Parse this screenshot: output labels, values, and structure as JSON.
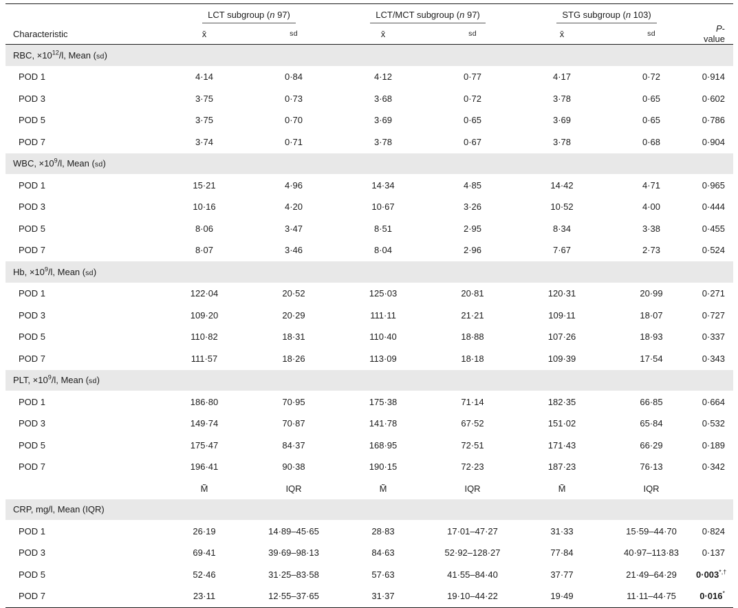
{
  "header": {
    "groups": [
      {
        "label": "LCT subgroup (",
        "n_label": "n",
        "n_value": " 97)"
      },
      {
        "label": "LCT/MCT subgroup (",
        "n_label": "n",
        "n_value": " 97)"
      },
      {
        "label": "STG subgroup (",
        "n_label": "n",
        "n_value": " 103)"
      }
    ],
    "characteristic": "Characteristic",
    "mean_symbol": "x̄",
    "sd_symbol": "sd",
    "p_value_italic": "P",
    "p_value_rest": "-value"
  },
  "sections": [
    {
      "label_pre": "RBC, ×10",
      "label_sup": "12",
      "label_post": "/l, Mean (",
      "label_sc": "sd",
      "label_end": ")",
      "rows": [
        {
          "label": "POD 1",
          "values": [
            "4·14",
            "0·84",
            "4·12",
            "0·77",
            "4·17",
            "0·72"
          ],
          "p": "0·914"
        },
        {
          "label": "POD 3",
          "values": [
            "3·75",
            "0·73",
            "3·68",
            "0·72",
            "3·78",
            "0·65"
          ],
          "p": "0·602"
        },
        {
          "label": "POD 5",
          "values": [
            "3·75",
            "0·70",
            "3·69",
            "0·65",
            "3·69",
            "0·65"
          ],
          "p": "0·786"
        },
        {
          "label": "POD 7",
          "values": [
            "3·74",
            "0·71",
            "3·78",
            "0·67",
            "3·78",
            "0·68"
          ],
          "p": "0·904"
        }
      ]
    },
    {
      "label_pre": "WBC, ×10",
      "label_sup": "9",
      "label_post": "/l, Mean (",
      "label_sc": "sd",
      "label_end": ")",
      "rows": [
        {
          "label": "POD 1",
          "values": [
            "15·21",
            "4·96",
            "14·34",
            "4·85",
            "14·42",
            "4·71"
          ],
          "p": "0·965"
        },
        {
          "label": "POD 3",
          "values": [
            "10·16",
            "4·20",
            "10·67",
            "3·26",
            "10·52",
            "4·00"
          ],
          "p": "0·444"
        },
        {
          "label": "POD 5",
          "values": [
            "8·06",
            "3·47",
            "8·51",
            "2·95",
            "8·34",
            "3·38"
          ],
          "p": "0·455"
        },
        {
          "label": "POD 7",
          "values": [
            "8·07",
            "3·46",
            "8·04",
            "2·96",
            "7·67",
            "2·73"
          ],
          "p": "0·524"
        }
      ]
    },
    {
      "label_pre": "Hb, ×10",
      "label_sup": "9",
      "label_post": "/l, Mean (",
      "label_sc": "sd",
      "label_end": ")",
      "rows": [
        {
          "label": "POD 1",
          "values": [
            "122·04",
            "20·52",
            "125·03",
            "20·81",
            "120·31",
            "20·99"
          ],
          "p": "0·271"
        },
        {
          "label": "POD 3",
          "values": [
            "109·20",
            "20·29",
            "111·11",
            "21·21",
            "109·11",
            "18·07"
          ],
          "p": "0·727"
        },
        {
          "label": "POD 5",
          "values": [
            "110·82",
            "18·31",
            "110·40",
            "18·88",
            "107·26",
            "18·93"
          ],
          "p": "0·337"
        },
        {
          "label": "POD 7",
          "values": [
            "111·57",
            "18·26",
            "113·09",
            "18·18",
            "109·39",
            "17·54"
          ],
          "p": "0·343"
        }
      ]
    },
    {
      "label_pre": "PLT, ×10",
      "label_sup": "9",
      "label_post": "/l, Mean (",
      "label_sc": "sd",
      "label_end": ")",
      "rows": [
        {
          "label": "POD 1",
          "values": [
            "186·80",
            "70·95",
            "175·38",
            "71·14",
            "182·35",
            "66·85"
          ],
          "p": "0·664"
        },
        {
          "label": "POD 3",
          "values": [
            "149·74",
            "70·87",
            "141·78",
            "67·52",
            "151·02",
            "65·84"
          ],
          "p": "0·532"
        },
        {
          "label": "POD 5",
          "values": [
            "175·47",
            "84·37",
            "168·95",
            "72·51",
            "171·43",
            "66·29"
          ],
          "p": "0·189"
        },
        {
          "label": "POD 7",
          "values": [
            "196·41",
            "90·38",
            "190·15",
            "72·23",
            "187·23",
            "76·13"
          ],
          "p": "0·342"
        }
      ]
    }
  ],
  "subheader": {
    "median_symbol": "M̃",
    "iqr": "IQR"
  },
  "crp": {
    "label": "CRP, mg/l, Mean (IQR)",
    "rows": [
      {
        "label": "POD 1",
        "values": [
          "26·19",
          "14·89–45·65",
          "28·83",
          "17·01–47·27",
          "31·33",
          "15·59–44·70"
        ],
        "p": "0·824",
        "p_sup": "",
        "bold": false
      },
      {
        "label": "POD 3",
        "values": [
          "69·41",
          "39·69–98·13",
          "84·63",
          "52·92–128·27",
          "77·84",
          "40·97–113·83"
        ],
        "p": "0·137",
        "p_sup": "",
        "bold": false
      },
      {
        "label": "POD 5",
        "values": [
          "52·46",
          "31·25–83·58",
          "57·63",
          "41·55–84·40",
          "37·77",
          "21·49–64·29"
        ],
        "p": "0·003",
        "p_sup": "*,†",
        "bold": true
      },
      {
        "label": "POD 7",
        "values": [
          "23·11",
          "12·55–37·65",
          "31·37",
          "19·10–44·22",
          "19·49",
          "11·11–44·75"
        ],
        "p": "0·016",
        "p_sup": "*",
        "bold": true
      }
    ]
  }
}
